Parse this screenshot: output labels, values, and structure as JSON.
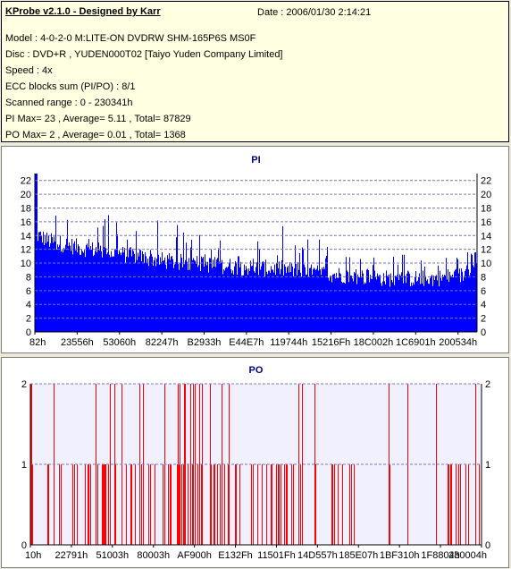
{
  "info": {
    "title": "KProbe v2.1.0 - Designed by Karr",
    "date": "Date : 2006/01/30 2:14:21",
    "lines": [
      "Model : 4-0-2-0 M:LITE-ON DVDRW SHM-165P6S MS0F",
      "Disc : DVD+R , YUDEN000T02 [Taiyo Yuden Company Limited]",
      "Speed : 4x",
      "ECC blocks sum (PI/PO) : 8/1",
      "Scanned range : 0 - 230341h",
      "PI Max= 23 , Average= 5.11 , Total= 87829",
      "PO Max= 2 , Average= 0.01 , Total= 1368"
    ]
  },
  "colors": {
    "pi": "#0000ff",
    "po": "#ff0000",
    "po_bg": "#f0f0ff",
    "grid": "#7777bb"
  },
  "chart_data": [
    {
      "type": "bar",
      "title": "PI",
      "ylim": [
        0,
        23
      ],
      "yticks": [
        "0",
        "2",
        "4",
        "6",
        "8",
        "10",
        "12",
        "14",
        "16",
        "18",
        "20",
        "22"
      ],
      "xticks": [
        "82h",
        "23556h",
        "53060h",
        "82247h",
        "B2933h",
        "E44E7h",
        "119744h",
        "15216Fh",
        "18C002h",
        "1C6901h",
        "200534h"
      ],
      "grid": true,
      "profile": [
        [
          0,
          14,
          23
        ],
        [
          0.03,
          13,
          20
        ],
        [
          0.1,
          12,
          19
        ],
        [
          0.2,
          11,
          17
        ],
        [
          0.3,
          10,
          16
        ],
        [
          0.4,
          9.5,
          14
        ],
        [
          0.5,
          9,
          14
        ],
        [
          0.55,
          9,
          16
        ],
        [
          0.6,
          8.5,
          14
        ],
        [
          0.7,
          8,
          13
        ],
        [
          0.8,
          7.5,
          12
        ],
        [
          0.9,
          7.5,
          11
        ],
        [
          0.97,
          8,
          11
        ],
        [
          1.0,
          11,
          14
        ]
      ]
    },
    {
      "type": "bar",
      "title": "PO",
      "ylim": [
        0,
        2
      ],
      "yticks": [
        "0",
        "1",
        "2"
      ],
      "xticks": [
        "10h",
        "22791h",
        "51003h",
        "80003h",
        "AF900h",
        "E132Fh",
        "11501Fh",
        "14D557h",
        "185E07h",
        "1BF310h",
        "1F8804h",
        "230004h"
      ],
      "grid": true,
      "note": "Sparse bars of height 1 and 2 across the scan"
    }
  ]
}
